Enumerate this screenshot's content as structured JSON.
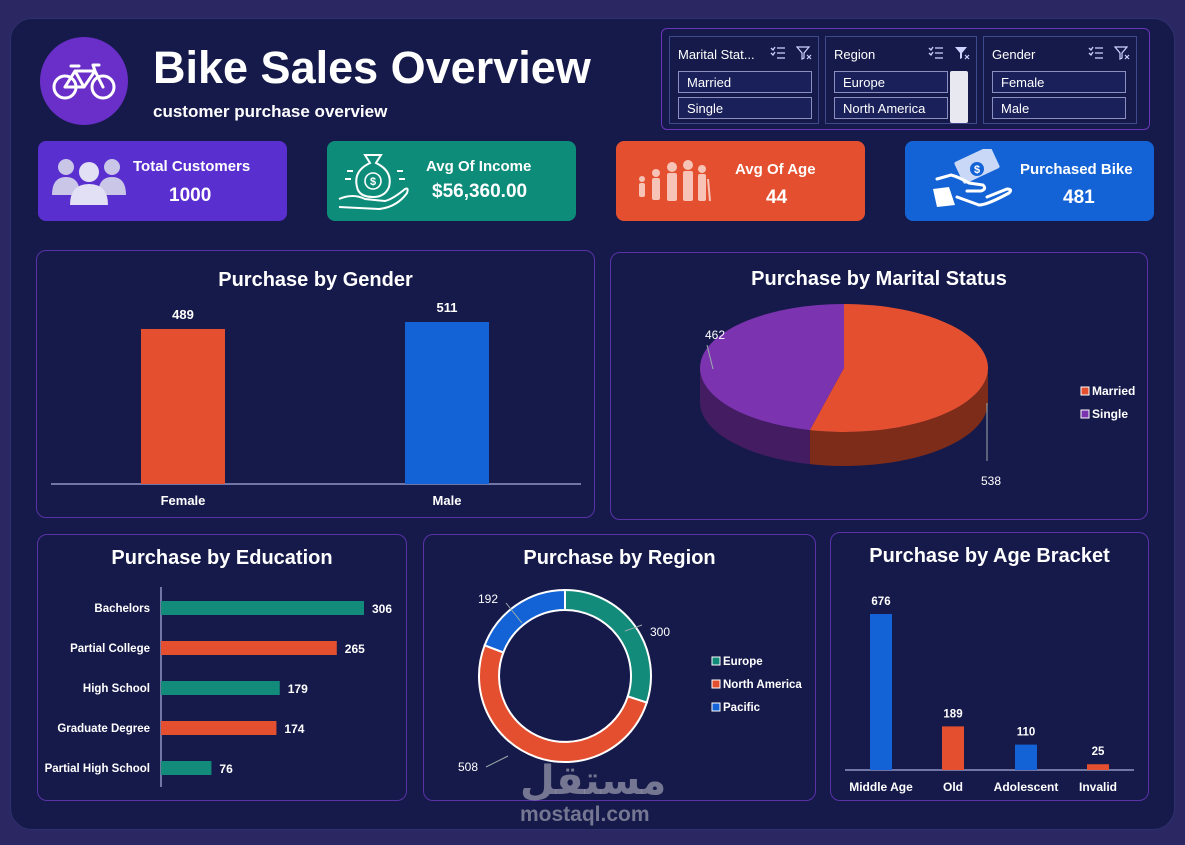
{
  "header": {
    "title": "Bike Sales Overview",
    "subtitle": "customer purchase overview",
    "logo_icon": "bicycle-icon"
  },
  "slicers": [
    {
      "label": "Marital Stat...",
      "items": [
        "Married",
        "Single"
      ]
    },
    {
      "label": "Region",
      "items": [
        "Europe",
        "North America"
      ]
    },
    {
      "label": "Gender",
      "items": [
        "Female",
        "Male"
      ]
    }
  ],
  "kpis": [
    {
      "label": "Total Customers",
      "value": "1000",
      "icon": "people-icon",
      "color": "#5a2fd0"
    },
    {
      "label": "Avg Of Income",
      "value": "$56,360.00",
      "icon": "money-bag-hand-icon",
      "color": "#0e8c7a"
    },
    {
      "label": "Avg Of Age",
      "value": "44",
      "icon": "family-ages-icon",
      "color": "#e4502f"
    },
    {
      "label": "Purchased Bike",
      "value": "481",
      "icon": "cash-hand-icon",
      "color": "#1463d6"
    }
  ],
  "colors": {
    "orange": "#e4502f",
    "blue": "#1463d6",
    "teal": "#128b7a",
    "purple": "#7b33b0"
  },
  "chart_data": [
    {
      "type": "bar",
      "title": "Purchase by Gender",
      "categories": [
        "Female",
        "Male"
      ],
      "values": [
        489,
        511
      ],
      "colors": [
        "#e4502f",
        "#1463d6"
      ]
    },
    {
      "type": "pie",
      "title": "Purchase by Marital Status",
      "categories": [
        "Married",
        "Single"
      ],
      "values": [
        538,
        462
      ],
      "colors": [
        "#e4502f",
        "#7b33b0"
      ],
      "legend": "right",
      "style": "3d"
    },
    {
      "type": "bar",
      "orientation": "horizontal",
      "title": "Purchase by Education",
      "categories": [
        "Bachelors",
        "Partial College",
        "High School",
        "Graduate Degree",
        "Partial High School"
      ],
      "values": [
        306,
        265,
        179,
        174,
        76
      ],
      "colors": [
        "#128b7a",
        "#e4502f",
        "#128b7a",
        "#e4502f",
        "#128b7a"
      ]
    },
    {
      "type": "pie",
      "style": "donut",
      "title": "Purchase by Region",
      "categories": [
        "Europe",
        "North America",
        "Pacific"
      ],
      "values": [
        300,
        508,
        192
      ],
      "colors": [
        "#128b7a",
        "#e4502f",
        "#1463d6"
      ],
      "legend": "right"
    },
    {
      "type": "bar",
      "title": "Purchase by Age Bracket",
      "categories": [
        "Middle Age",
        "Old",
        "Adolescent",
        "Invalid"
      ],
      "values": [
        676,
        189,
        110,
        25
      ],
      "colors": [
        "#1463d6",
        "#e4502f",
        "#1463d6",
        "#e4502f"
      ]
    }
  ],
  "watermark": {
    "arabic": "مستقل",
    "latin": "mostaql.com"
  }
}
